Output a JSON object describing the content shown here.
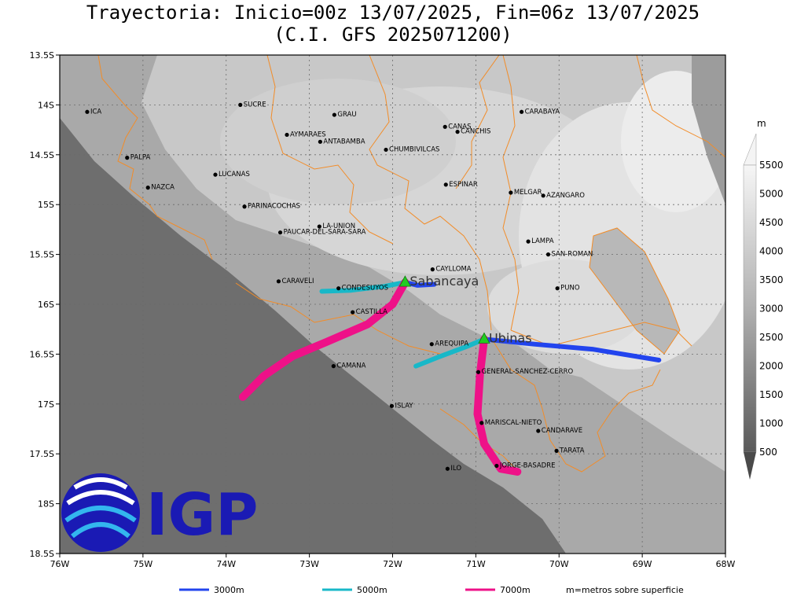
{
  "title": {
    "line1": "Trayectoria: Inicio=00z 13/07/2025, Fin=06z 13/07/2025",
    "line2": "(C.I. GFS 2025071200)"
  },
  "map": {
    "lon_range": [
      -76,
      -68
    ],
    "lat_range": [
      -18.5,
      -13.5
    ],
    "x_ticks": [
      {
        "lon": -76,
        "label": "76W"
      },
      {
        "lon": -75,
        "label": "75W"
      },
      {
        "lon": -74,
        "label": "74W"
      },
      {
        "lon": -73,
        "label": "73W"
      },
      {
        "lon": -72,
        "label": "72W"
      },
      {
        "lon": -71,
        "label": "71W"
      },
      {
        "lon": -70,
        "label": "70W"
      },
      {
        "lon": -69,
        "label": "69W"
      },
      {
        "lon": -68,
        "label": "68W"
      }
    ],
    "y_ticks": [
      {
        "lat": -13.5,
        "label": "13.5S"
      },
      {
        "lat": -14,
        "label": "14S"
      },
      {
        "lat": -14.5,
        "label": "14.5S"
      },
      {
        "lat": -15,
        "label": "15S"
      },
      {
        "lat": -15.5,
        "label": "15.5S"
      },
      {
        "lat": -16,
        "label": "16S"
      },
      {
        "lat": -16.5,
        "label": "16.5S"
      },
      {
        "lat": -17,
        "label": "17S"
      },
      {
        "lat": -17.5,
        "label": "17.5S"
      },
      {
        "lat": -18,
        "label": "18S"
      },
      {
        "lat": -18.5,
        "label": "18.5S"
      }
    ],
    "grid": true,
    "border_color": "#f28c28",
    "cities": [
      {
        "name": "ICA",
        "lon": -75.67,
        "lat": -14.07
      },
      {
        "name": "SUCRE",
        "lon": -73.83,
        "lat": -14.0
      },
      {
        "name": "GRAU",
        "lon": -72.7,
        "lat": -14.1
      },
      {
        "name": "AYMARAES",
        "lon": -73.27,
        "lat": -14.3
      },
      {
        "name": "ANTABAMBA",
        "lon": -72.87,
        "lat": -14.37
      },
      {
        "name": "CANAS",
        "lon": -71.37,
        "lat": -14.22
      },
      {
        "name": "CANCHIS",
        "lon": -71.22,
        "lat": -14.27
      },
      {
        "name": "CARABAYA",
        "lon": -70.45,
        "lat": -14.07
      },
      {
        "name": "CHUMBIVILCAS",
        "lon": -72.08,
        "lat": -14.45
      },
      {
        "name": "PALPA",
        "lon": -75.19,
        "lat": -14.53
      },
      {
        "name": "NAZCA",
        "lon": -74.94,
        "lat": -14.83
      },
      {
        "name": "LUCANAS",
        "lon": -74.13,
        "lat": -14.7
      },
      {
        "name": "ESPINAR",
        "lon": -71.36,
        "lat": -14.8
      },
      {
        "name": "MELGAR",
        "lon": -70.58,
        "lat": -14.88
      },
      {
        "name": "AZANGARO",
        "lon": -70.19,
        "lat": -14.91
      },
      {
        "name": "PARINACOCHAS",
        "lon": -73.78,
        "lat": -15.02
      },
      {
        "name": "LA-UNION",
        "lon": -72.88,
        "lat": -15.22
      },
      {
        "name": "PAUCAR-DEL-SARA-SARA",
        "lon": -73.35,
        "lat": -15.28
      },
      {
        "name": "LAMPA",
        "lon": -70.37,
        "lat": -15.37
      },
      {
        "name": "SAN-ROMAN",
        "lon": -70.13,
        "lat": -15.5
      },
      {
        "name": "CAYLLOMA",
        "lon": -71.52,
        "lat": -15.65
      },
      {
        "name": "CARAVELI",
        "lon": -73.37,
        "lat": -15.77
      },
      {
        "name": "CONDESUYOS",
        "lon": -72.65,
        "lat": -15.84
      },
      {
        "name": "PUNO",
        "lon": -70.02,
        "lat": -15.84
      },
      {
        "name": "CASTILLA",
        "lon": -72.48,
        "lat": -16.08
      },
      {
        "name": "AREQUIPA",
        "lon": -71.53,
        "lat": -16.4
      },
      {
        "name": "CAMANA",
        "lon": -72.71,
        "lat": -16.62
      },
      {
        "name": "GENERAL-SANCHEZ-CERRO",
        "lon": -70.97,
        "lat": -16.68
      },
      {
        "name": "ISLAY",
        "lon": -72.01,
        "lat": -17.02
      },
      {
        "name": "MARISCAL-NIETO",
        "lon": -70.93,
        "lat": -17.19
      },
      {
        "name": "CANDARAVE",
        "lon": -70.25,
        "lat": -17.27
      },
      {
        "name": "TARATA",
        "lon": -70.03,
        "lat": -17.47
      },
      {
        "name": "ILO",
        "lon": -71.34,
        "lat": -17.65
      },
      {
        "name": "JORGE-BASADRE",
        "lon": -70.75,
        "lat": -17.62
      }
    ],
    "volcanoes": [
      {
        "name": "Sabancaya",
        "lon": -71.85,
        "lat": -15.78
      },
      {
        "name": "Ubinas",
        "lon": -70.9,
        "lat": -16.35
      }
    ]
  },
  "trajectories": [
    {
      "volcano": "Sabancaya",
      "level": "3000m",
      "color": "#2244ee",
      "points": [
        [
          -71.85,
          -15.78
        ],
        [
          -71.7,
          -15.81
        ],
        [
          -71.5,
          -15.8
        ]
      ]
    },
    {
      "volcano": "Sabancaya",
      "level": "5000m",
      "color": "#18b8c8",
      "points": [
        [
          -71.85,
          -15.78
        ],
        [
          -72.1,
          -15.82
        ],
        [
          -72.5,
          -15.86
        ],
        [
          -72.85,
          -15.87
        ]
      ]
    },
    {
      "volcano": "Sabancaya",
      "level": "7000m",
      "color": "#ee1188",
      "points": [
        [
          -71.85,
          -15.78
        ],
        [
          -72.0,
          -16.0
        ],
        [
          -72.3,
          -16.2
        ],
        [
          -72.8,
          -16.38
        ],
        [
          -73.2,
          -16.52
        ],
        [
          -73.55,
          -16.72
        ],
        [
          -73.8,
          -16.93
        ]
      ]
    },
    {
      "volcano": "Ubinas",
      "level": "3000m",
      "color": "#2244ee",
      "points": [
        [
          -70.9,
          -16.35
        ],
        [
          -70.3,
          -16.4
        ],
        [
          -69.6,
          -16.45
        ],
        [
          -68.8,
          -16.56
        ]
      ]
    },
    {
      "volcano": "Ubinas",
      "level": "5000m",
      "color": "#18b8c8",
      "points": [
        [
          -70.9,
          -16.35
        ],
        [
          -71.1,
          -16.42
        ],
        [
          -71.45,
          -16.53
        ],
        [
          -71.72,
          -16.62
        ]
      ]
    },
    {
      "volcano": "Ubinas",
      "level": "7000m",
      "color": "#ee1188",
      "points": [
        [
          -70.9,
          -16.35
        ],
        [
          -70.95,
          -16.7
        ],
        [
          -70.98,
          -17.1
        ],
        [
          -70.9,
          -17.4
        ],
        [
          -70.7,
          -17.65
        ],
        [
          -70.5,
          -17.68
        ]
      ]
    }
  ],
  "colorbar": {
    "unit": "m",
    "levels": [
      "500",
      "1000",
      "1500",
      "2000",
      "2500",
      "3000",
      "3500",
      "4000",
      "4500",
      "5000",
      "5500"
    ]
  },
  "legend": {
    "items": [
      {
        "label": "3000m",
        "color": "#2244ee"
      },
      {
        "label": "5000m",
        "color": "#18b8c8"
      },
      {
        "label": "7000m",
        "color": "#ee1188"
      }
    ],
    "note": "m=metros sobre superficie"
  },
  "logo": {
    "text": "IGP",
    "color": "#1a1ab4"
  }
}
